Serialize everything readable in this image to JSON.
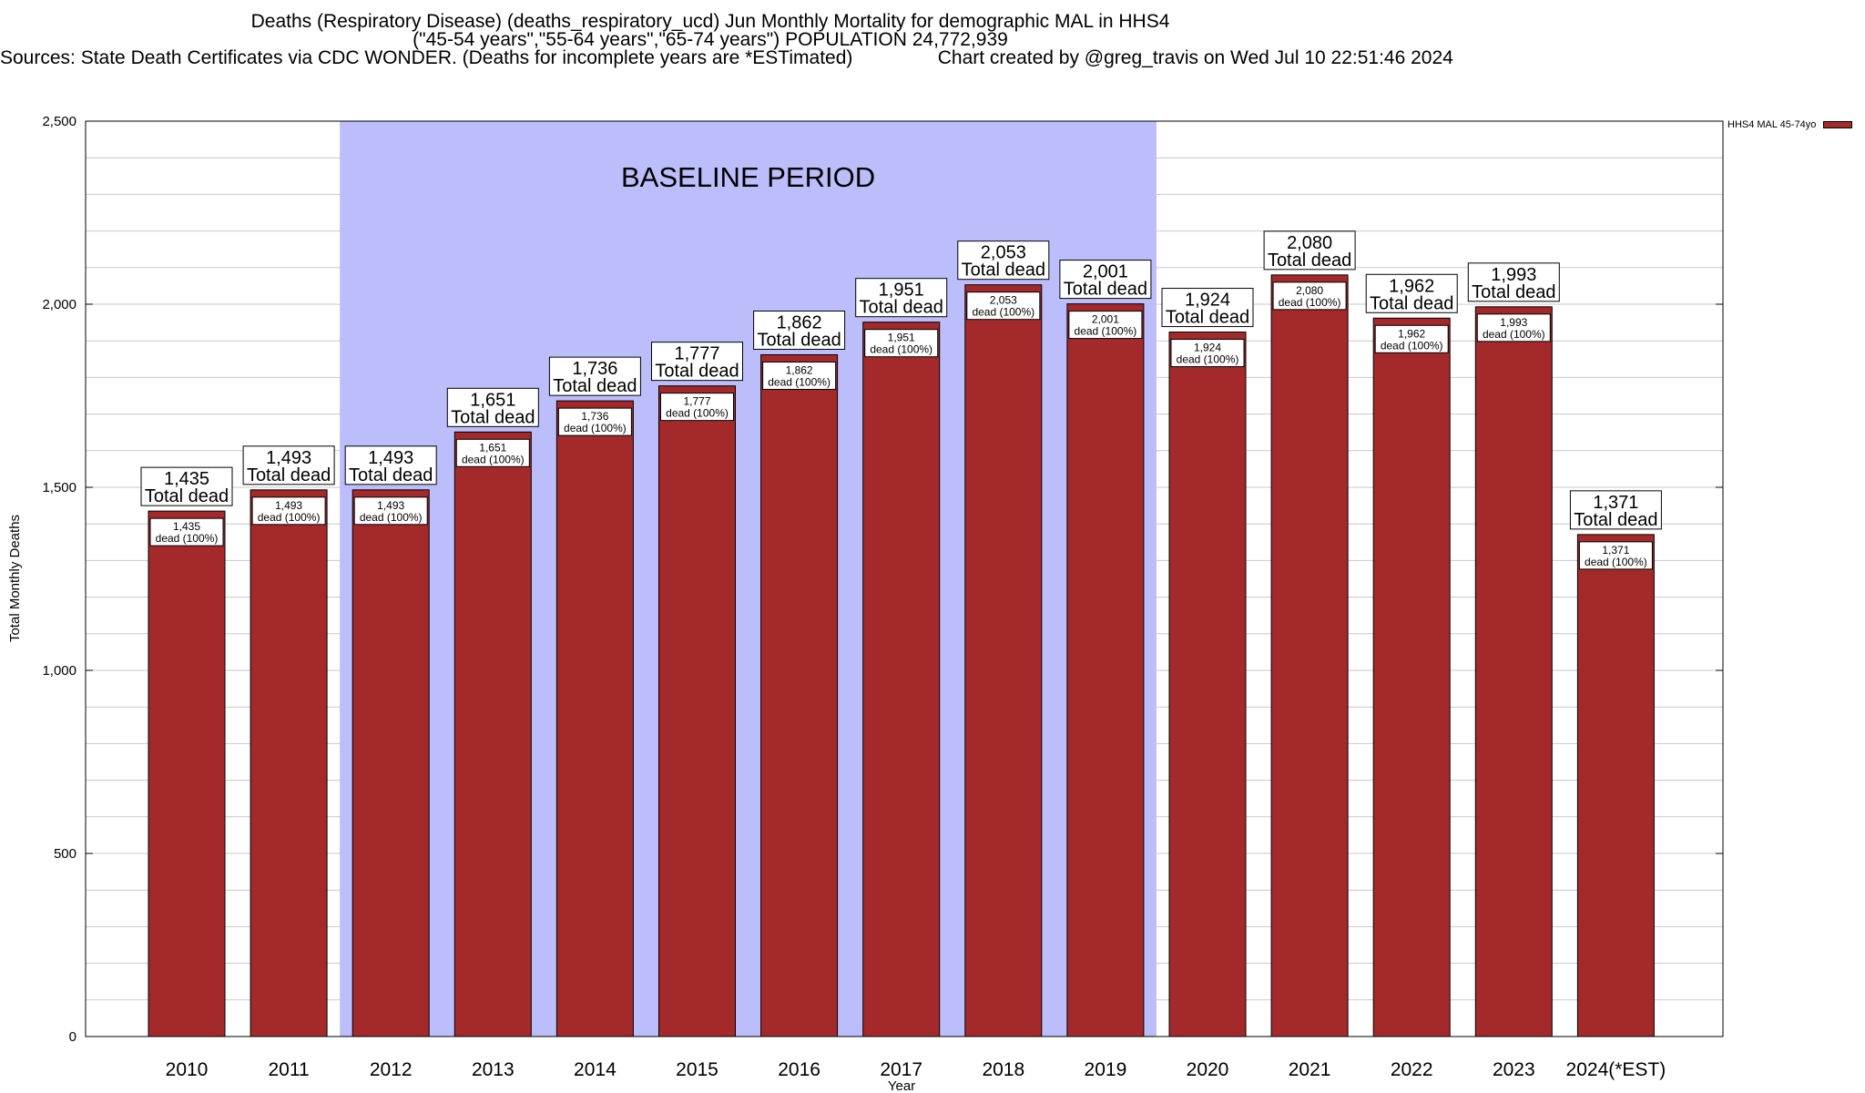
{
  "title_lines": [
    "Deaths (Respiratory Disease) (deaths_respiratory_ucd) Jun Monthly Mortality for demographic MAL in HHS4",
    "(\"45-54 years\",\"55-64 years\",\"65-74 years\") POPULATION 24,772,939",
    "Sources: State Death Certificates via CDC WONDER. (Deaths for incomplete years are *ESTimated)                Chart created by @greg_travis on Wed Jul 10 22:51:46 2024"
  ],
  "legend_label": "HHS4 MAL 45-74yo",
  "colors": {
    "bar": "#a3292b",
    "baseline": "#bcbdfb",
    "grid": "#c9c9c9"
  },
  "chart_data": {
    "type": "bar",
    "categories": [
      "2010",
      "2011",
      "2012",
      "2013",
      "2014",
      "2015",
      "2016",
      "2017",
      "2018",
      "2019",
      "2020",
      "2021",
      "2022",
      "2023",
      "2024(*EST)"
    ],
    "series": [
      {
        "name": "HHS4 MAL 45-74yo",
        "values": [
          1435,
          1493,
          1493,
          1651,
          1736,
          1777,
          1862,
          1951,
          2053,
          2001,
          1924,
          2080,
          1962,
          1993,
          1371
        ]
      }
    ],
    "value_labels": [
      "1,435",
      "1,493",
      "1,493",
      "1,651",
      "1,736",
      "1,777",
      "1,862",
      "1,951",
      "2,053",
      "2,001",
      "1,924",
      "2,080",
      "1,962",
      "1,993",
      "1,371"
    ],
    "top_label_suffix": "Total dead",
    "inner_label_suffix": "dead (100%)",
    "xlabel": "Year",
    "ylabel": "Total Monthly Deaths",
    "ylim": [
      0,
      2500
    ],
    "y_ticks": [
      0,
      500,
      1000,
      1500,
      2000,
      2500
    ],
    "y_tick_labels": [
      "0",
      "500",
      "1,000",
      "1,500",
      "2,000",
      "2,500"
    ],
    "minor_grid_step": 100,
    "baseline_period": {
      "label": "BASELINE PERIOD",
      "start": "2012",
      "end": "2019"
    },
    "grid": true,
    "legend_position": "top-right"
  }
}
